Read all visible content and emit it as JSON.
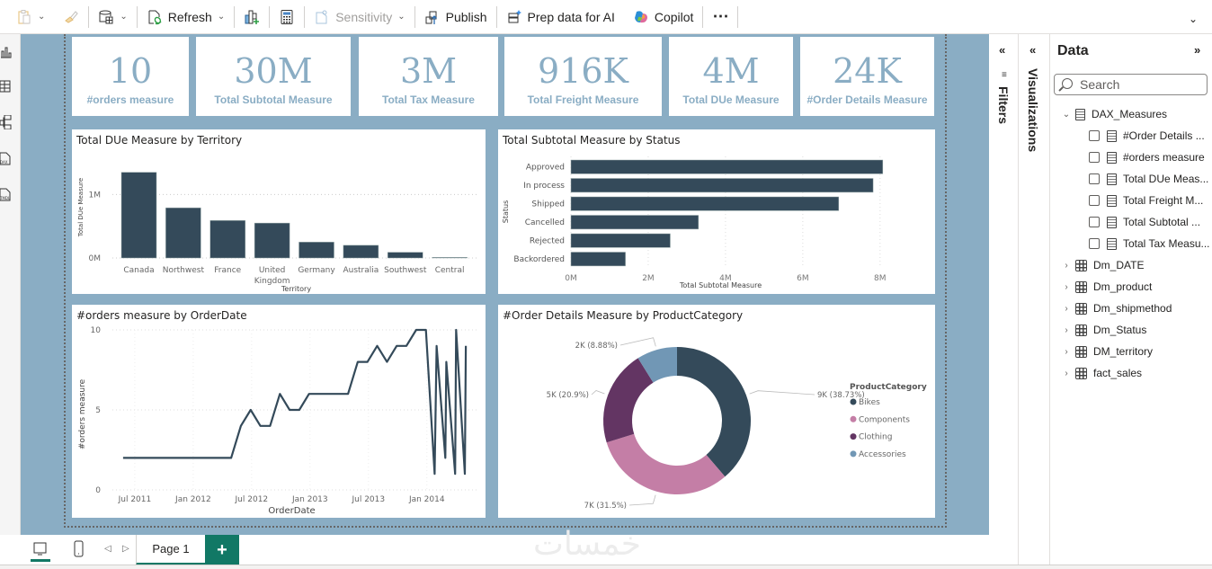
{
  "toolbar": {
    "items": [
      {
        "id": "paste",
        "label": "",
        "icon": "clipboard-icon",
        "disabled": true
      },
      {
        "id": "format-painter",
        "label": "",
        "icon": "brush-icon",
        "disabled": true
      },
      {
        "id": "transform",
        "label": "",
        "icon": "database-table-icon"
      },
      {
        "id": "refresh",
        "label": "Refresh",
        "icon": "refresh-icon"
      },
      {
        "id": "new-visual",
        "label": "",
        "icon": "new-visual-icon"
      },
      {
        "id": "new-measure",
        "label": "",
        "icon": "calculator-icon"
      },
      {
        "id": "sensitivity",
        "label": "Sensitivity",
        "icon": "sensitivity-icon",
        "disabled": true
      },
      {
        "id": "publish",
        "label": "Publish",
        "icon": "publish-icon"
      },
      {
        "id": "prep-ai",
        "label": "Prep data for AI",
        "icon": "prep-data-icon"
      },
      {
        "id": "copilot",
        "label": "Copilot",
        "icon": "copilot-icon"
      },
      {
        "id": "more",
        "label": "⋯",
        "icon": "more-icon"
      }
    ],
    "expand_glyph": "⌄"
  },
  "cards": [
    {
      "value": "10",
      "label": "#orders measure"
    },
    {
      "value": "30M",
      "label": "Total Subtotal Measure"
    },
    {
      "value": "3M",
      "label": "Total Tax Measure"
    },
    {
      "value": "916K",
      "label": "Total Freight Measure"
    },
    {
      "value": "4M",
      "label": "Total DUe Measure"
    },
    {
      "value": "24K",
      "label": "#Order Details Measure"
    }
  ],
  "colors": {
    "canvas_bg": "#8aadc4",
    "bar": "#344a5a",
    "bikes": "#344a5a",
    "components": "#c47ea6",
    "clothing": "#633563",
    "accessories": "#7197b5",
    "accent": "#117865"
  },
  "chart_data": [
    {
      "type": "bar",
      "title": "Total DUe Measure by Territory",
      "xlabel": "Territory",
      "ylabel": "Total DUe Measure",
      "categories": [
        "Canada",
        "Northwest",
        "France",
        "United Kingdom",
        "Germany",
        "Australia",
        "Southwest",
        "Central"
      ],
      "category_lines": [
        [
          "Canada"
        ],
        [
          "Northwest"
        ],
        [
          "France"
        ],
        [
          "United",
          "Kingdom"
        ],
        [
          "Germany"
        ],
        [
          "Australia"
        ],
        [
          "Southwest"
        ],
        [
          "Central"
        ]
      ],
      "values": [
        1350000,
        790000,
        590000,
        550000,
        250000,
        200000,
        90000,
        10000
      ],
      "yticks": [
        {
          "v": 0,
          "label": "0M"
        },
        {
          "v": 1000000,
          "label": "1M"
        }
      ],
      "ylim": [
        0,
        1600000
      ],
      "grid": true
    },
    {
      "type": "bar",
      "orientation": "horizontal",
      "title": "Total Subtotal Measure by Status",
      "xlabel": "Total Subtotal Measure",
      "ylabel": "Status",
      "categories": [
        "Approved",
        "In process",
        "Shipped",
        "Cancelled",
        "Rejected",
        "Backordered"
      ],
      "values": [
        8070000,
        7820000,
        6930000,
        3300000,
        2570000,
        1410000
      ],
      "xticks": [
        {
          "v": 0,
          "label": "0M"
        },
        {
          "v": 2000000,
          "label": "2M"
        },
        {
          "v": 4000000,
          "label": "4M"
        },
        {
          "v": 6000000,
          "label": "6M"
        },
        {
          "v": 8000000,
          "label": "8M"
        }
      ],
      "xlim": [
        0,
        8400000
      ],
      "grid": true
    },
    {
      "type": "line",
      "title": "#orders measure by OrderDate",
      "xlabel": "OrderDate",
      "ylabel": "#orders measure",
      "x_unit": "months since Jan 2011",
      "x": [
        4.8,
        5.8,
        6.8,
        7.8,
        8.8,
        9.8,
        10.8,
        11.8,
        12.8,
        13.8,
        14.8,
        15.9,
        16.9,
        17.9,
        18.9,
        19.9,
        20.9,
        21.9,
        22.9,
        23.9,
        24.9,
        25.9,
        26.9,
        27.9,
        28.9,
        29.9,
        30.9,
        31.9,
        32.9,
        33.9,
        34.9,
        35.9,
        36.8,
        37.0,
        37.9,
        38.0,
        38.9,
        39.0,
        39.9
      ],
      "y": [
        2,
        2,
        2,
        2,
        2,
        2,
        2,
        2,
        2,
        2,
        2,
        2,
        4,
        5,
        4,
        4,
        6,
        5,
        5,
        6,
        6,
        6,
        6,
        6,
        8,
        8,
        9,
        8,
        9,
        9,
        10,
        10,
        1,
        9,
        2,
        8,
        1,
        10,
        1
      ],
      "tail_point": {
        "x": 40.0,
        "y": 9
      },
      "xticks": [
        {
          "v": 6,
          "label": "Jul 2011"
        },
        {
          "v": 12,
          "label": "Jan 2012"
        },
        {
          "v": 18,
          "label": "Jul 2012"
        },
        {
          "v": 24,
          "label": "Jan 2013"
        },
        {
          "v": 30,
          "label": "Jul 2013"
        },
        {
          "v": 36,
          "label": "Jan 2014"
        }
      ],
      "yticks": [
        {
          "v": 0,
          "label": "0"
        },
        {
          "v": 5,
          "label": "5"
        },
        {
          "v": 10,
          "label": "10"
        }
      ],
      "xlim": [
        3.7,
        41.1
      ],
      "ylim": [
        0,
        10
      ],
      "grid": true
    },
    {
      "type": "pie",
      "donut": true,
      "title": "#Order Details Measure by ProductCategory",
      "legend_title": "ProductCategory",
      "legend_position": "right",
      "slices": [
        {
          "name": "Bikes",
          "value": 38.73,
          "label": "9K (38.73%)",
          "color": "#344a5a"
        },
        {
          "name": "Components",
          "value": 31.5,
          "label": "7K (31.5%)",
          "color": "#c47ea6"
        },
        {
          "name": "Clothing",
          "value": 20.9,
          "label": "5K (20.9%)",
          "color": "#633563"
        },
        {
          "name": "Accessories",
          "value": 8.88,
          "label": "2K (8.88%)",
          "color": "#7197b5"
        }
      ]
    }
  ],
  "panes": {
    "filters_label": "Filters",
    "visualizations_label": "Visualizations",
    "data_title": "Data",
    "collapse_left": "«",
    "collapse_right": "»",
    "search_placeholder": "Search",
    "tree": [
      {
        "type": "measures-table",
        "label": "DAX_Measures",
        "expanded": true,
        "children": [
          "#Order Details ...",
          "#orders measure",
          "Total DUe Meas...",
          "Total Freight M...",
          "Total Subtotal ...",
          "Total Tax Measu..."
        ]
      },
      {
        "type": "table",
        "label": "Dm_DATE"
      },
      {
        "type": "table",
        "label": "Dm_product"
      },
      {
        "type": "table",
        "label": "Dm_shipmethod"
      },
      {
        "type": "table",
        "label": "Dm_Status"
      },
      {
        "type": "table",
        "label": "DM_territory"
      },
      {
        "type": "table",
        "label": "fact_sales"
      }
    ]
  },
  "bottom": {
    "page_tab": "Page 1",
    "add_page": "+",
    "prev": "◁",
    "next": "▷"
  },
  "watermark": "خمسات"
}
